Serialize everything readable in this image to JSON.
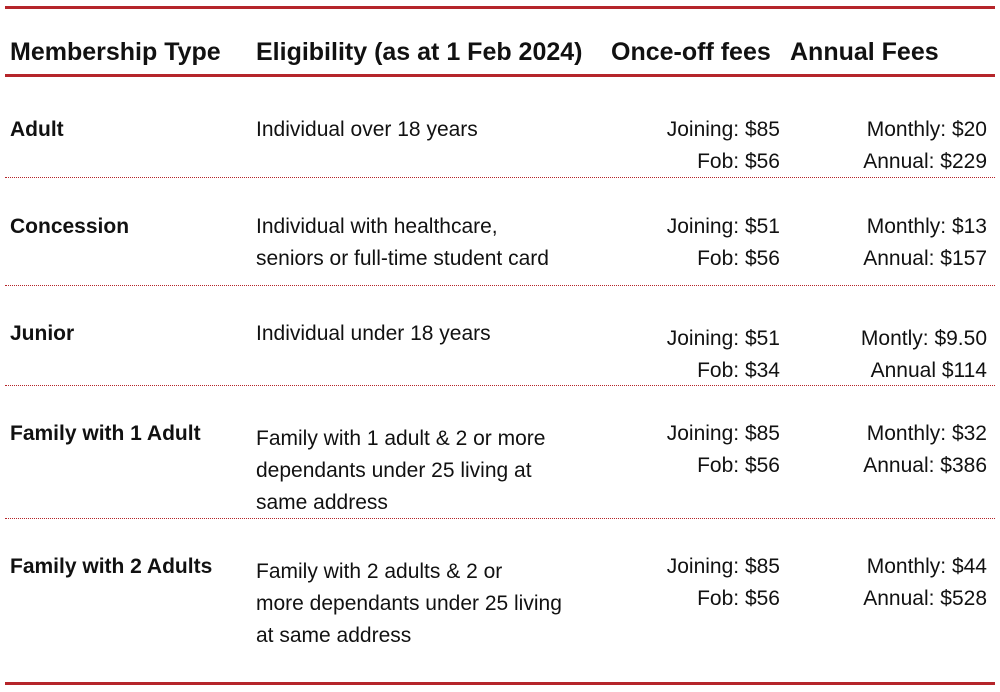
{
  "headers": {
    "type": "Membership Type",
    "eligibility": "Eligibility (as at 1 Feb 2024)",
    "once_off": "Once-off fees",
    "annual": "Annual Fees"
  },
  "rows": [
    {
      "type": "Adult",
      "eligibility": [
        "Individual over 18 years"
      ],
      "once_off": [
        "Joining: $85",
        "Fob: $56"
      ],
      "annual": [
        "Monthly: $20",
        "Annual: $229"
      ]
    },
    {
      "type": "Concession",
      "eligibility": [
        "Individual with healthcare,",
        "seniors or full-time student card"
      ],
      "once_off": [
        "Joining: $51",
        "Fob: $56"
      ],
      "annual": [
        "Monthly: $13",
        "Annual: $157"
      ]
    },
    {
      "type": "Junior",
      "eligibility": [
        "Individual under 18 years"
      ],
      "once_off": [
        "Joining: $51",
        "Fob: $34"
      ],
      "annual": [
        "Montly: $9.50",
        "Annual $114"
      ]
    },
    {
      "type": "Family with 1 Adult",
      "eligibility": [
        "Family with 1 adult & 2 or more",
        "dependants under 25 living at",
        "same address"
      ],
      "once_off": [
        "Joining: $85",
        "Fob: $56"
      ],
      "annual": [
        "Monthly: $32",
        "Annual: $386"
      ]
    },
    {
      "type": "Family with 2 Adults",
      "eligibility": [
        "Family with 2 adults & 2 or",
        "more dependants under 25 living",
        "at same address"
      ],
      "once_off": [
        "Joining: $85",
        "Fob: $56"
      ],
      "annual": [
        "Monthly: $44",
        "Annual: $528"
      ]
    }
  ]
}
